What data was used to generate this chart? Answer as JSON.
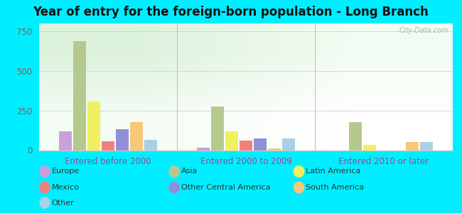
{
  "title": "Year of entry for the foreign-born population - Long Branch",
  "categories": [
    "Entered before 2000",
    "Entered 2000 to 2009",
    "Entered 2010 or later"
  ],
  "series": {
    "Europe": [
      120,
      15,
      0
    ],
    "Asia": [
      690,
      275,
      175
    ],
    "Latin America": [
      305,
      120,
      35
    ],
    "Mexico": [
      55,
      60,
      0
    ],
    "Other Central America": [
      130,
      75,
      0
    ],
    "South America": [
      175,
      10,
      50
    ],
    "Other": [
      65,
      75,
      50
    ]
  },
  "colors": {
    "Europe": "#c9a0dc",
    "Asia": "#b5c98e",
    "Latin America": "#f0f060",
    "Mexico": "#f08080",
    "Other Central America": "#9090d8",
    "South America": "#f5c87a",
    "Other": "#a8d0e8"
  },
  "bar_order": [
    "Europe",
    "Asia",
    "Latin America",
    "Mexico",
    "Other Central America",
    "South America",
    "Other"
  ],
  "ylim": [
    0,
    800
  ],
  "yticks": [
    0,
    250,
    500,
    750
  ],
  "outer_bg": "#00eeff",
  "plot_bg": "#e0f0e0",
  "watermark": "City-Data.com",
  "title_fontsize": 12,
  "xlabel_color": "#bb3399",
  "ylabel_color": "#666666"
}
